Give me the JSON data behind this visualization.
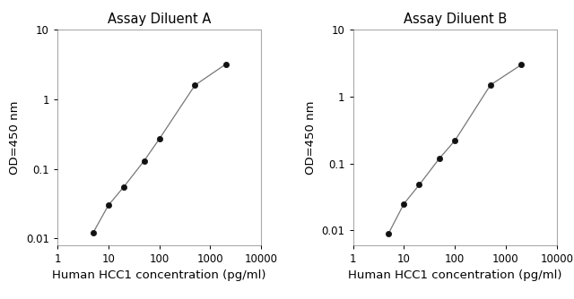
{
  "panel_A": {
    "title": "Assay Diluent A",
    "x": [
      5,
      10,
      20,
      50,
      100,
      500,
      2000
    ],
    "y": [
      0.012,
      0.03,
      0.055,
      0.13,
      0.27,
      1.6,
      3.2
    ],
    "xlim": [
      1,
      10000
    ],
    "ylim": [
      0.008,
      10
    ],
    "xlabel": "Human HCC1 concentration (pg/ml)",
    "ylabel": "OD=450 nm",
    "xticks": [
      1,
      10,
      100,
      1000,
      10000
    ],
    "yticks": [
      0.01,
      0.1,
      1,
      10
    ]
  },
  "panel_B": {
    "title": "Assay Diluent B",
    "x": [
      5,
      10,
      20,
      50,
      100,
      500,
      2000
    ],
    "y": [
      0.009,
      0.025,
      0.048,
      0.12,
      0.22,
      1.5,
      3.0
    ],
    "xlim": [
      1,
      10000
    ],
    "ylim": [
      0.006,
      10
    ],
    "xlabel": "Human HCC1 concentration (pg/ml)",
    "ylabel": "OD=450 nm",
    "xticks": [
      1,
      10,
      100,
      1000,
      10000
    ],
    "yticks": [
      0.01,
      0.1,
      1,
      10
    ]
  },
  "line_color": "#777777",
  "marker_color": "#111111",
  "background_color": "#ffffff",
  "title_fontsize": 10.5,
  "label_fontsize": 9.5,
  "tick_fontsize": 8.5
}
